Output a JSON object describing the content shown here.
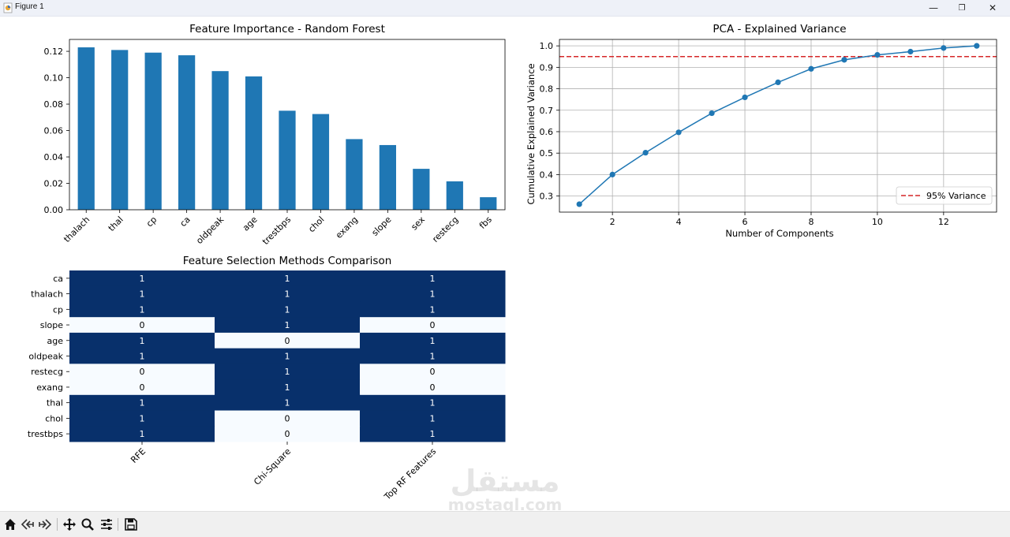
{
  "window": {
    "title": "Figure 1",
    "icon": "matplotlib-figure-icon",
    "controls": [
      {
        "name": "minimize-button",
        "glyph": "—"
      },
      {
        "name": "restore-button",
        "glyph": "❐"
      },
      {
        "name": "close-button",
        "glyph": "✕"
      }
    ]
  },
  "toolbar": {
    "tools": [
      "home-icon",
      "back-icon",
      "forward-icon",
      "pan-icon",
      "zoom-icon",
      "configure-subplots-icon",
      "save-icon"
    ]
  },
  "watermark": {
    "arabic": "مستقل",
    "latin": "mostaql.com"
  },
  "colors": {
    "bar": "#1f77b4",
    "line": "#1f77b4",
    "threshold": "#d62728",
    "heat_dark": "#08306b",
    "heat_light": "#f7fbff"
  },
  "chart_data": [
    {
      "type": "bar",
      "title": "Feature Importance - Random Forest",
      "categories": [
        "thalach",
        "thal",
        "cp",
        "ca",
        "oldpeak",
        "age",
        "trestbps",
        "chol",
        "exang",
        "slope",
        "sex",
        "restecg",
        "fbs"
      ],
      "values": [
        0.123,
        0.121,
        0.119,
        0.117,
        0.105,
        0.101,
        0.075,
        0.0725,
        0.0535,
        0.049,
        0.031,
        0.0215,
        0.0095
      ],
      "ylim": [
        0,
        0.129
      ],
      "yticks": [
        "0.00",
        "0.02",
        "0.04",
        "0.06",
        "0.08",
        "0.10",
        "0.12"
      ],
      "xlabel": "",
      "ylabel": "",
      "grid": false
    },
    {
      "type": "line",
      "title": "PCA - Explained Variance",
      "xlabel": "Number of Components",
      "ylabel": "Cumulative Explained Variance",
      "x": [
        1,
        2,
        3,
        4,
        5,
        6,
        7,
        8,
        9,
        10,
        11,
        12,
        13
      ],
      "y": [
        0.262,
        0.4,
        0.502,
        0.597,
        0.686,
        0.76,
        0.83,
        0.893,
        0.935,
        0.958,
        0.973,
        0.99,
        1.0
      ],
      "xlim": [
        0.4,
        13.6
      ],
      "ylim": [
        0.225,
        1.03
      ],
      "xticks": [
        "2",
        "4",
        "6",
        "8",
        "10",
        "12"
      ],
      "yticks": [
        "0.3",
        "0.4",
        "0.5",
        "0.6",
        "0.7",
        "0.8",
        "0.9",
        "1.0"
      ],
      "threshold": {
        "y": 0.95,
        "label": "95% Variance"
      },
      "legend": "lower-right",
      "grid": true
    },
    {
      "type": "heatmap",
      "title": "Feature Selection Methods Comparison",
      "rows": [
        "ca",
        "thalach",
        "cp",
        "slope",
        "age",
        "oldpeak",
        "restecg",
        "exang",
        "thal",
        "chol",
        "trestbps"
      ],
      "columns": [
        "RFE",
        "Chi-Square",
        "Top RF Features"
      ],
      "values": [
        [
          1,
          1,
          1
        ],
        [
          1,
          1,
          1
        ],
        [
          1,
          1,
          1
        ],
        [
          0,
          1,
          0
        ],
        [
          1,
          0,
          1
        ],
        [
          1,
          1,
          1
        ],
        [
          0,
          1,
          0
        ],
        [
          0,
          1,
          0
        ],
        [
          1,
          1,
          1
        ],
        [
          1,
          0,
          1
        ],
        [
          1,
          0,
          1
        ]
      ]
    }
  ]
}
